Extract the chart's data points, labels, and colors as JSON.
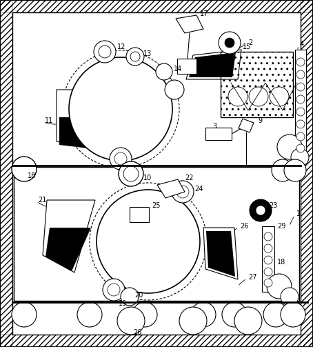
{
  "fig_width": 4.54,
  "fig_height": 5.03,
  "dpi": 100
}
